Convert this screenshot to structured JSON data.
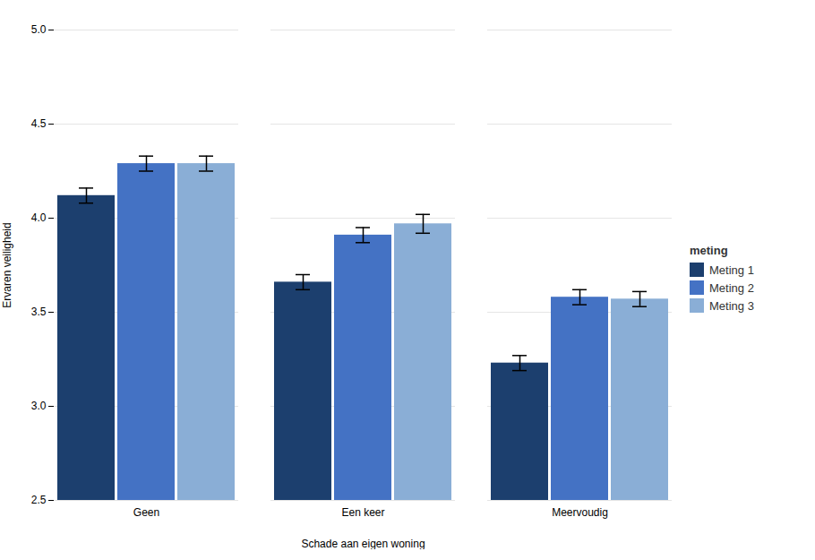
{
  "chart_data": {
    "type": "bar",
    "categories": [
      "Geen",
      "Een keer",
      "Meervoudig"
    ],
    "series": [
      {
        "name": "Meting 1",
        "color": "#1c3f6e",
        "values": [
          4.12,
          3.66,
          3.23
        ],
        "errors": [
          0.04,
          0.04,
          0.04
        ]
      },
      {
        "name": "Meting 2",
        "color": "#4472c4",
        "values": [
          4.29,
          3.91,
          3.58
        ],
        "errors": [
          0.04,
          0.04,
          0.04
        ]
      },
      {
        "name": "Meting 3",
        "color": "#8aaed6",
        "values": [
          4.29,
          3.97,
          3.57
        ],
        "errors": [
          0.04,
          0.05,
          0.04
        ]
      }
    ],
    "xlabel": "Schade aan eigen woning",
    "ylabel": "Ervaren veiligheid",
    "legend_title": "meting",
    "ylim": [
      2.5,
      5.0
    ],
    "yticks": [
      2.5,
      {
        "value": 3.0,
        "label": "3.0"
      },
      3.5,
      {
        "value": 4.0,
        "label": "4.0"
      },
      4.5,
      {
        "value": 5.0,
        "label": "5.0"
      }
    ],
    "grid": true,
    "legend": "right"
  }
}
